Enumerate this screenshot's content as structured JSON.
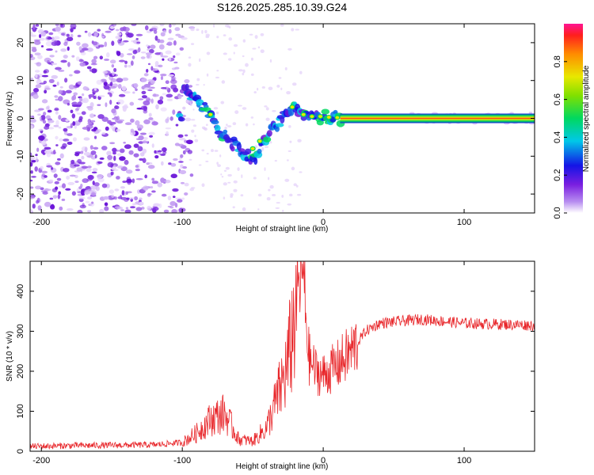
{
  "title": "S126.2025.285.10.39.G24",
  "chart_data": [
    {
      "type": "heatmap",
      "xlabel": "Height of straight line (km)",
      "ylabel": "Frequency (Hz)",
      "xlim": [
        -208,
        150
      ],
      "ylim": [
        -25,
        25
      ],
      "xticks": [
        -200,
        -100,
        0,
        100
      ],
      "yticks": [
        -20,
        -10,
        0,
        10,
        20
      ],
      "colorbar": {
        "label": "Normalized spectral amplitude",
        "range": [
          0,
          1
        ],
        "ticks": [
          0.0,
          0.2,
          0.4,
          0.6,
          0.8
        ]
      },
      "signal_path": [
        {
          "x": -100,
          "y": 9
        },
        {
          "x": -85,
          "y": 3
        },
        {
          "x": -75,
          "y": -3
        },
        {
          "x": -60,
          "y": -8
        },
        {
          "x": -50,
          "y": -11
        },
        {
          "x": -40,
          "y": -5
        },
        {
          "x": -22,
          "y": 3
        },
        {
          "x": -10,
          "y": 0.5
        },
        {
          "x": 15,
          "y": 0
        },
        {
          "x": 150,
          "y": 0
        }
      ],
      "carrier_frequency": 0
    },
    {
      "type": "line",
      "xlabel": "Height of straight line (km)",
      "ylabel": "SNR (10 * v/v)",
      "xlim": [
        -208,
        150
      ],
      "ylim": [
        0,
        475
      ],
      "xticks": [
        -200,
        -100,
        0,
        100
      ],
      "yticks": [
        0,
        100,
        200,
        300,
        400
      ],
      "series": [
        {
          "name": "SNR",
          "color": "#e8262a",
          "points": [
            {
              "x": -208,
              "y": 12
            },
            {
              "x": -180,
              "y": 14
            },
            {
              "x": -150,
              "y": 15
            },
            {
              "x": -120,
              "y": 16
            },
            {
              "x": -100,
              "y": 22
            },
            {
              "x": -90,
              "y": 45
            },
            {
              "x": -80,
              "y": 80
            },
            {
              "x": -70,
              "y": 95
            },
            {
              "x": -60,
              "y": 30
            },
            {
              "x": -50,
              "y": 25
            },
            {
              "x": -40,
              "y": 60
            },
            {
              "x": -30,
              "y": 160
            },
            {
              "x": -25,
              "y": 220
            },
            {
              "x": -15,
              "y": 470
            },
            {
              "x": -10,
              "y": 230
            },
            {
              "x": -5,
              "y": 200
            },
            {
              "x": 0,
              "y": 190
            },
            {
              "x": 10,
              "y": 215
            },
            {
              "x": 20,
              "y": 250
            },
            {
              "x": 30,
              "y": 300
            },
            {
              "x": 40,
              "y": 320
            },
            {
              "x": 70,
              "y": 330
            },
            {
              "x": 100,
              "y": 320
            },
            {
              "x": 150,
              "y": 315
            }
          ]
        }
      ]
    }
  ]
}
